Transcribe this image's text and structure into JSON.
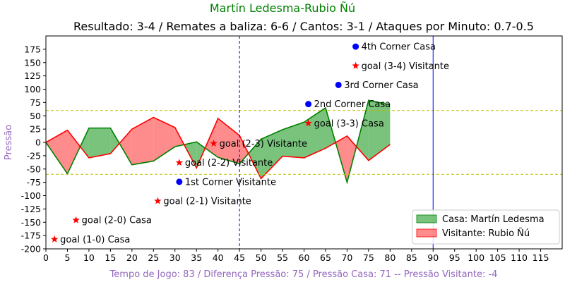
{
  "chart_data": {
    "type": "area",
    "title": "Martín Ledesma-Rubio Ñú",
    "subtitle": "Resultado: 3-4 / Remates a baliza: 6-6 / Cantos: 3-1 / Ataques por Minuto: 0.7-0.5",
    "xlabel": "Tempo de Jogo: 83 / Diferença Pressão: 75 / Pressão Casa: 71 -- Pressão Visitante: -4",
    "ylabel": "Pressão",
    "xlim": [
      0,
      120
    ],
    "ylim": [
      -200,
      200
    ],
    "xticks": [
      0,
      5,
      10,
      15,
      20,
      25,
      30,
      35,
      40,
      45,
      50,
      55,
      60,
      65,
      70,
      75,
      80,
      85,
      90,
      95,
      100,
      105,
      110,
      115
    ],
    "yticks": [
      -200,
      -175,
      -150,
      -125,
      -100,
      -75,
      -50,
      -25,
      0,
      25,
      50,
      75,
      100,
      125,
      150,
      175
    ],
    "series": [
      {
        "name": "Casa: Martín Ledesma",
        "color": "#008000",
        "fill": "#4caf50",
        "x": [
          0,
          5,
          10,
          15,
          20,
          25,
          30,
          35,
          40,
          45,
          50,
          55,
          60,
          65,
          70,
          75,
          80
        ],
        "values": [
          0,
          -59,
          27,
          27,
          -42,
          -35,
          -8,
          1,
          -28,
          -40,
          6,
          24,
          38,
          65,
          -75,
          79,
          71
        ]
      },
      {
        "name": "Visitante: Rubio Ñú",
        "color": "#ff0000",
        "fill": "#ff6666",
        "x": [
          0,
          5,
          10,
          15,
          20,
          25,
          30,
          35,
          40,
          45,
          50,
          55,
          60,
          65,
          70,
          75,
          80
        ],
        "values": [
          0,
          23,
          -29,
          -21,
          25,
          47,
          28,
          -48,
          45,
          13,
          -68,
          -26,
          -29,
          -11,
          12,
          -34,
          -4
        ]
      }
    ],
    "reference_lines": {
      "horizontal": [
        60,
        -60
      ],
      "horizontal_color": "#bfbf00",
      "vertical": [
        {
          "x": 45,
          "color": "#0000ff",
          "style": "dashed"
        },
        {
          "x": 90,
          "color": "#0000ff",
          "style": "solid"
        }
      ]
    },
    "annotations": [
      {
        "x": 2,
        "y": -182,
        "marker": "star",
        "color": "#ff0000",
        "text": "goal (1-0) Casa"
      },
      {
        "x": 7,
        "y": -146,
        "marker": "star",
        "color": "#ff0000",
        "text": "goal (2-0) Casa"
      },
      {
        "x": 26,
        "y": -110,
        "marker": "star",
        "color": "#ff0000",
        "text": "goal (2-1) Visitante"
      },
      {
        "x": 31,
        "y": -74,
        "marker": "dot",
        "color": "#0000ff",
        "text": "1st Corner Visitante"
      },
      {
        "x": 31,
        "y": -38,
        "marker": "star",
        "color": "#ff0000",
        "text": "goal (2-2) Visitante"
      },
      {
        "x": 39,
        "y": -2,
        "marker": "star",
        "color": "#ff0000",
        "text": "goal (2-3) Visitante"
      },
      {
        "x": 61,
        "y": 36,
        "marker": "star",
        "color": "#ff0000",
        "text": "goal (3-3) Casa"
      },
      {
        "x": 61,
        "y": 72,
        "marker": "dot",
        "color": "#0000ff",
        "text": "2nd Corner Casa"
      },
      {
        "x": 68,
        "y": 108,
        "marker": "dot",
        "color": "#0000ff",
        "text": "3rd Corner Casa"
      },
      {
        "x": 72,
        "y": 144,
        "marker": "star",
        "color": "#ff0000",
        "text": "goal (3-4) Visitante"
      },
      {
        "x": 72,
        "y": 180,
        "marker": "dot",
        "color": "#0000ff",
        "text": "4th Corner Casa"
      }
    ],
    "legend": {
      "position": "bottom-right",
      "entries": [
        "Casa: Martín Ledesma",
        "Visitante: Rubio Ñú"
      ]
    },
    "grid": false
  }
}
